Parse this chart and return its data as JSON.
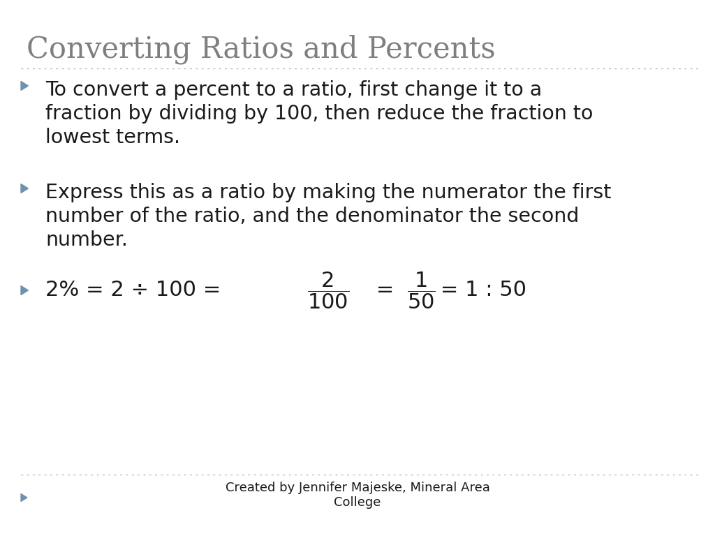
{
  "title": "Converting Ratios and Percents",
  "title_color": "#7f7f7f",
  "title_fontsize": 30,
  "title_font": "DejaVu Serif",
  "background_color": "#ffffff",
  "bullet_color": "#7090b0",
  "text_color": "#1a1a1a",
  "body_fontsize": 20.5,
  "body_font": "DejaVu Sans",
  "bullet1_line1": "To convert a percent to a ratio, first change it to a",
  "bullet1_line2": "fraction by dividing by 100, then reduce the fraction to",
  "bullet1_line3": "lowest terms.",
  "bullet2_line1": "Express this as a ratio by making the numerator the first",
  "bullet2_line2": "number of the ratio, and the denominator the second",
  "bullet2_line3": "number.",
  "footer_text": "Created by Jennifer Majeske, Mineral Area\nCollege",
  "footer_fontsize": 13,
  "divider_color": "#aabbcc",
  "equation_fontsize": 22
}
